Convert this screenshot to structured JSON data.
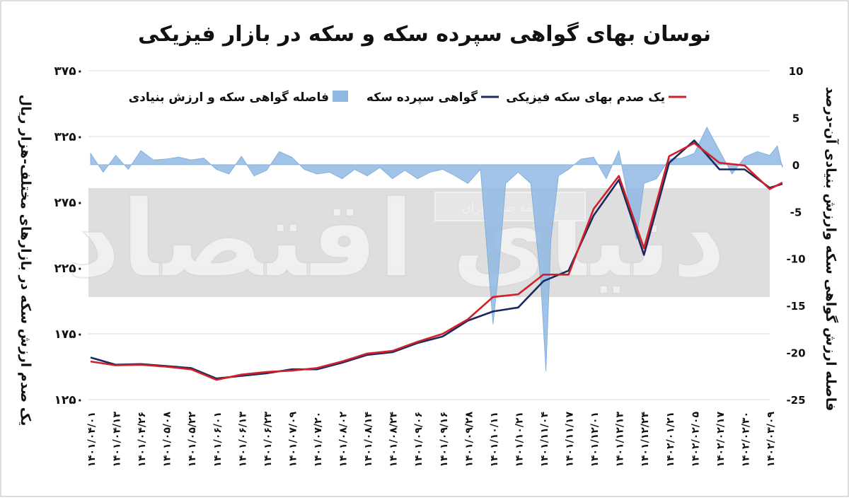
{
  "chart_data": {
    "type": "line",
    "title": "نوسان بهای گواهی سپرده سکه و سکه در بازار فیزیکی",
    "ylabel_left": "یک صدم ارزش سکه در بازارهای مختلف-هزار ریال",
    "ylabel_right": "فاصله ارزش گواهی سکه وارزش بنیادی آن-درصد",
    "watermark": "دنیای اقتصاد",
    "watermark_small": "روزنامه صبح ایران",
    "ylim_left": [
      1250,
      3750
    ],
    "ylim_right": [
      -25,
      10
    ],
    "yticks_left": [
      "۳۷۵۰",
      "۳۲۵۰",
      "۲۷۵۰",
      "۲۲۵۰",
      "۱۷۵۰",
      "۱۲۵۰"
    ],
    "yticks_right": [
      "10",
      "5",
      "0",
      "-5",
      "-10",
      "-15",
      "-20",
      "-25"
    ],
    "x_ticks": [
      "۱۴۰۱/۰۴/۰۱",
      "۱۴۰۱/۰۴/۱۳",
      "۱۴۰۱/۰۴/۲۶",
      "۱۴۰۱/۰۵/۰۸",
      "۱۴۰۱/۰۵/۲۲",
      "۱۴۰۱/۰۶/۰۱",
      "۱۴۰۱/۰۶/۱۳",
      "۱۴۰۱/۰۶/۲۳",
      "۱۴۰۱/۰۷/۰۹",
      "۱۴۰۱/۰۷/۲۰",
      "۱۴۰۱/۰۸/۰۲",
      "۱۴۰۱/۰۸/۱۴",
      "۱۴۰۱/۰۸/۲۴",
      "۱۴۰۱/۰۹/۰۶",
      "۱۴۰۱/۰۹/۱۶",
      "۱۴۰۱/۰۹/۲۸",
      "۱۴۰۱/۱۰/۱۱",
      "۱۴۰۱/۱۰/۲۱",
      "۱۴۰۱/۱۱/۰۴",
      "۱۴۰۱/۱۱/۱۷",
      "۱۴۰۱/۱۲/۰۱",
      "۱۴۰۱/۱۲/۱۳",
      "۱۴۰۱/۱۲/۲۴",
      "۱۴۰۲/۰۱/۲۱",
      "۱۴۰۲/۰۲/۰۵",
      "۱۴۰۲/۰۲/۱۷",
      "۱۴۰۲/۰۲/۳۰",
      "۱۴۰۲/۰۳/۰۹"
    ],
    "series": [
      {
        "name": "یک صدم بهای سکه فیزیکی",
        "type": "line",
        "color": "#d0202a",
        "x": [
          0,
          1,
          2,
          3,
          4,
          5,
          6,
          7,
          8,
          9,
          10,
          11,
          12,
          13,
          14,
          15,
          16,
          17,
          18,
          19,
          20,
          21,
          22,
          23,
          24,
          25,
          26,
          27,
          27.5
        ],
        "values": [
          1540,
          1510,
          1515,
          1500,
          1480,
          1400,
          1440,
          1460,
          1470,
          1490,
          1540,
          1600,
          1620,
          1690,
          1750,
          1860,
          2030,
          2050,
          2200,
          2200,
          2700,
          2950,
          2400,
          3100,
          3200,
          3050,
          3030,
          2850,
          2900
        ]
      },
      {
        "name": "گواهی سپرده سکه",
        "type": "line",
        "color": "#1b2a5e",
        "x": [
          0,
          1,
          2,
          3,
          4,
          5,
          6,
          7,
          8,
          9,
          10,
          11,
          12,
          13,
          14,
          15,
          16,
          17,
          18,
          19,
          20,
          21,
          22,
          23,
          24,
          25,
          26,
          27,
          27.5
        ],
        "values": [
          1570,
          1515,
          1520,
          1505,
          1490,
          1410,
          1430,
          1450,
          1480,
          1480,
          1530,
          1590,
          1610,
          1680,
          1730,
          1850,
          1920,
          1950,
          2150,
          2230,
          2650,
          2920,
          2350,
          3050,
          3220,
          3000,
          3000,
          2860,
          2890
        ]
      },
      {
        "name": "فاصله گواهی سکه و ارزش بنیادی",
        "type": "area",
        "axis": "right",
        "color": "#8fb8e3",
        "x": [
          0,
          0.5,
          1,
          1.5,
          2,
          2.5,
          3,
          3.5,
          4,
          4.5,
          5,
          5.5,
          6,
          6.5,
          7,
          7.5,
          8,
          8.5,
          9,
          9.5,
          10,
          10.5,
          11,
          11.5,
          12,
          12.5,
          13,
          13.5,
          14,
          14.5,
          15,
          15.5,
          16,
          16.2,
          16.5,
          17,
          17.5,
          17.9,
          18.1,
          18.3,
          18.6,
          19,
          19.5,
          20,
          20.5,
          21,
          21.4,
          21.7,
          22,
          22.5,
          23,
          23.5,
          24,
          24.5,
          25,
          25.5,
          26,
          26.5,
          27,
          27.3,
          27.5
        ],
        "values": [
          1.2,
          -0.8,
          1.0,
          -0.5,
          1.5,
          0.5,
          0.6,
          0.8,
          0.5,
          0.7,
          -0.5,
          -1.0,
          0.9,
          -1.2,
          -0.6,
          1.4,
          0.8,
          -0.5,
          -1.0,
          -0.8,
          -1.5,
          -0.5,
          -1.2,
          -0.3,
          -1.5,
          -0.6,
          -1.5,
          -0.8,
          -0.5,
          -1.2,
          -2.0,
          -0.5,
          -17.0,
          -12.0,
          -2.0,
          -0.8,
          -2.0,
          -12.5,
          -22.0,
          -8.0,
          -1.2,
          -0.5,
          0.6,
          0.8,
          -1.5,
          1.5,
          -4.0,
          -8.0,
          -2.0,
          -1.5,
          0.6,
          0.7,
          1.2,
          4.0,
          1.5,
          -1.0,
          0.8,
          1.4,
          1.0,
          2.0,
          -0.3
        ]
      }
    ],
    "legend_position": "top"
  }
}
